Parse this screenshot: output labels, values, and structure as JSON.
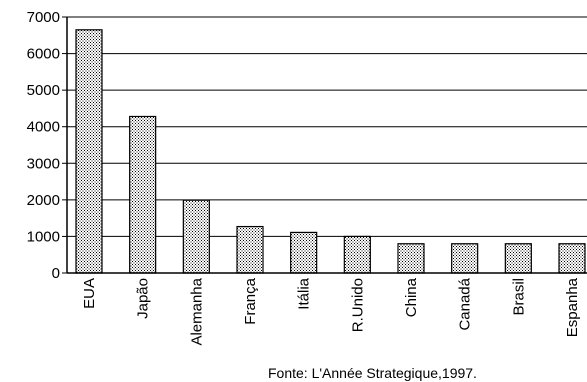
{
  "chart_data": {
    "type": "bar",
    "title": "",
    "xlabel": "",
    "ylabel": "",
    "ylim": [
      0,
      7000
    ],
    "yticks": [
      0,
      1000,
      2000,
      3000,
      4000,
      5000,
      6000,
      7000
    ],
    "grid": true,
    "categories": [
      "EUA",
      "Japão",
      "Alemanha",
      "França",
      "Itália",
      "R.Unido",
      "China",
      "Canadá",
      "Brasil",
      "Espanha"
    ],
    "values": [
      6650,
      4280,
      1990,
      1270,
      1110,
      1000,
      800,
      800,
      800,
      800
    ],
    "bar_pattern": "dotted"
  },
  "source_note": "Fonte: L'Année Strategique,1997."
}
